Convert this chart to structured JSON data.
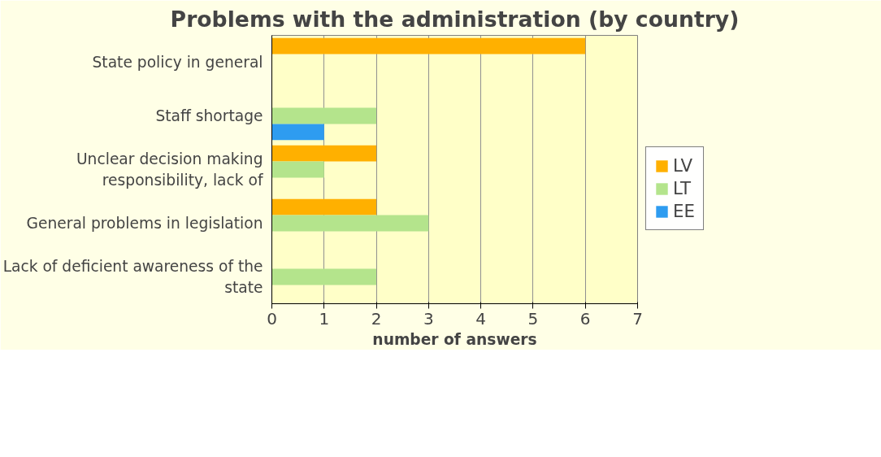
{
  "chart_data": {
    "type": "bar",
    "orientation": "horizontal",
    "title": "Problems with the administration (by country)",
    "xlabel": "number of answers",
    "categories": [
      "State policy in general",
      "Staff shortage",
      "Unclear decision making responsibility, lack of",
      "General problems in legislation",
      "Lack of deficient awareness of the state"
    ],
    "series": [
      {
        "name": "LV",
        "color": "#ffb000",
        "values": [
          6,
          null,
          2,
          2,
          null
        ]
      },
      {
        "name": "LT",
        "color": "#b4e48c",
        "values": [
          null,
          2,
          1,
          3,
          2
        ]
      },
      {
        "name": "EE",
        "color": "#2e9cf0",
        "values": [
          null,
          1,
          null,
          null,
          null
        ]
      }
    ],
    "xlim": [
      0,
      7
    ],
    "xticks": [
      0,
      1,
      2,
      3,
      4,
      5,
      6,
      7
    ],
    "grid": "x",
    "legend": "right"
  }
}
